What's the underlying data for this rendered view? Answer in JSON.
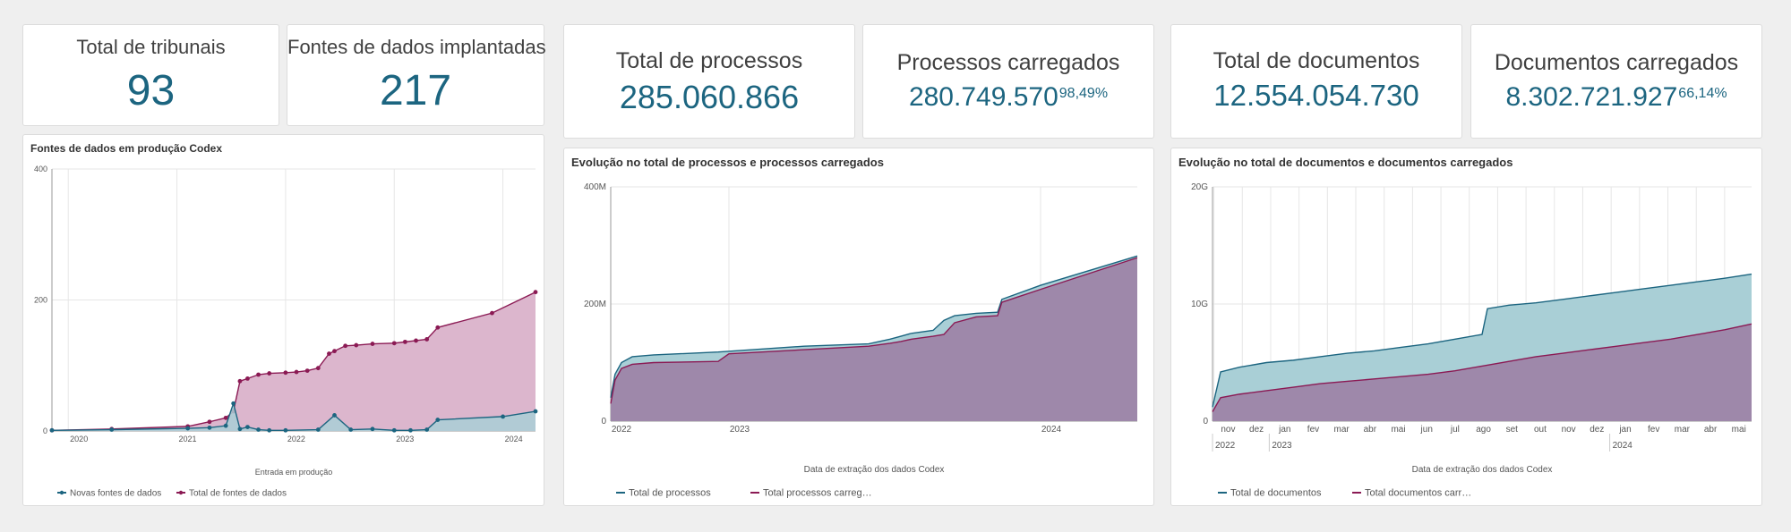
{
  "kpis": {
    "tribunais": {
      "label": "Total de tribunais",
      "value": "93"
    },
    "fontes": {
      "label": "Fontes de dados implantadas",
      "value": "217"
    },
    "processos": {
      "label": "Total de processos",
      "value": "285.060.866"
    },
    "processos_carregados": {
      "label": "Processos carregados",
      "value": "280.749.570",
      "pct": "98,49%"
    },
    "documentos": {
      "label": "Total de documentos",
      "value": "12.554.054.730"
    },
    "documentos_carregados": {
      "label": "Documentos carregados",
      "value": "8.302.721.927",
      "pct": "66,14%"
    }
  },
  "colors": {
    "teal": "#1c6580",
    "magenta": "#8b1a54",
    "teal_fill": "#a9cfd6",
    "pink_fill": "#dcb6cd",
    "purple_fill": "#9e88aa"
  },
  "chart_data": [
    {
      "type": "area",
      "title": "Fontes de dados em produção Codex",
      "xlabel": "Entrada em produção",
      "ylabel": "",
      "ylim": [
        0,
        400
      ],
      "yticks": [
        "0",
        "200",
        "400"
      ],
      "xticks": [
        "2020",
        "2021",
        "2022",
        "2023",
        "2024"
      ],
      "xlim": [
        2019.85,
        2024.3
      ],
      "tick_years": [
        2020,
        2021,
        2022,
        2023,
        2024
      ],
      "legend_position": "bottom-left",
      "series": [
        {
          "name": "Novas fontes de dados",
          "color": "#1c6580",
          "x": [
            2019.85,
            2020.4,
            2021.1,
            2021.3,
            2021.45,
            2021.52,
            2021.58,
            2021.65,
            2021.75,
            2021.85,
            2022.0,
            2022.3,
            2022.45,
            2022.6,
            2022.8,
            2023.0,
            2023.15,
            2023.3,
            2023.4,
            2024.0,
            2024.3
          ],
          "y": [
            1,
            2,
            4,
            5,
            8,
            42,
            3,
            6,
            2,
            1,
            1,
            2,
            24,
            2,
            3,
            1,
            1,
            2,
            17,
            22,
            30
          ]
        },
        {
          "name": "Total de fontes de dados",
          "color": "#8b1a54",
          "x": [
            2019.85,
            2020.4,
            2021.1,
            2021.3,
            2021.45,
            2021.52,
            2021.58,
            2021.65,
            2021.75,
            2021.85,
            2022.0,
            2022.1,
            2022.2,
            2022.3,
            2022.4,
            2022.45,
            2022.55,
            2022.65,
            2022.8,
            2023.0,
            2023.1,
            2023.2,
            2023.3,
            2023.4,
            2023.9,
            2024.3
          ],
          "y": [
            1,
            3,
            7,
            14,
            20,
            30,
            76,
            80,
            86,
            88,
            89,
            90,
            92,
            96,
            118,
            122,
            130,
            131,
            133,
            134,
            136,
            138,
            140,
            158,
            180,
            212
          ]
        }
      ]
    },
    {
      "type": "area",
      "title": "Evolução no total de processos e processos carregados",
      "xlabel": "Data de extração dos dados Codex",
      "ylabel": "",
      "ylim": [
        0,
        400
      ],
      "yticks": [
        "0",
        "200M",
        "400M"
      ],
      "xticks": [
        "2022",
        "2023",
        "2024"
      ],
      "xlim": [
        2022.0,
        2024.45
      ],
      "tick_years": [
        2022.0,
        2022.55,
        2024.0
      ],
      "legend_position": "bottom-left",
      "series": [
        {
          "name": "Total de processos",
          "color": "#1c6580",
          "x": [
            2022.0,
            2022.02,
            2022.05,
            2022.1,
            2022.2,
            2022.5,
            2022.9,
            2023.2,
            2023.3,
            2023.35,
            2023.4,
            2023.5,
            2023.55,
            2023.6,
            2023.7,
            2023.8,
            2023.82,
            2024.0,
            2024.45
          ],
          "y": [
            40,
            80,
            100,
            110,
            113,
            118,
            128,
            132,
            140,
            145,
            150,
            155,
            172,
            180,
            184,
            186,
            208,
            232,
            282
          ]
        },
        {
          "name": "Total processos carregados",
          "color": "#8b1a54",
          "x": [
            2022.0,
            2022.02,
            2022.05,
            2022.1,
            2022.2,
            2022.5,
            2022.55,
            2022.9,
            2023.2,
            2023.3,
            2023.35,
            2023.4,
            2023.5,
            2023.55,
            2023.6,
            2023.7,
            2023.8,
            2023.82,
            2024.0,
            2024.45
          ],
          "y": [
            30,
            70,
            90,
            97,
            100,
            102,
            115,
            122,
            128,
            133,
            136,
            140,
            145,
            148,
            168,
            178,
            180,
            203,
            225,
            279
          ]
        }
      ]
    },
    {
      "type": "area",
      "title": "Evolução no total de documentos e documentos carregados",
      "xlabel": "Data de extração dos dados Codex",
      "ylabel": "",
      "ylim": [
        0,
        20
      ],
      "yticks": [
        "0",
        "10G",
        "20G"
      ],
      "xticks": [
        "nov",
        "dez",
        "jan",
        "fev",
        "mar",
        "abr",
        "mai",
        "jun",
        "jul",
        "ago",
        "set",
        "out",
        "nov",
        "dez",
        "jan",
        "fev",
        "mar",
        "abr",
        "mai"
      ],
      "year_labels": [
        "2022",
        "2023",
        "2024"
      ],
      "year_label_index": [
        0,
        2,
        14
      ],
      "xlim": [
        0,
        20
      ],
      "legend_position": "bottom-left",
      "series": [
        {
          "name": "Total de documentos",
          "color": "#1c6580",
          "x": [
            0,
            0.3,
            1,
            2,
            3,
            4,
            5,
            6,
            7,
            8,
            9,
            10,
            10.2,
            11,
            12,
            13,
            14,
            15,
            16,
            17,
            18,
            19,
            20
          ],
          "y": [
            1.2,
            4.2,
            4.6,
            5.0,
            5.2,
            5.5,
            5.8,
            6.0,
            6.3,
            6.6,
            7.0,
            7.4,
            9.6,
            9.9,
            10.1,
            10.4,
            10.7,
            11.0,
            11.3,
            11.6,
            11.9,
            12.2,
            12.55
          ]
        },
        {
          "name": "Total documentos carregados",
          "color": "#8b1a54",
          "x": [
            0,
            0.3,
            1,
            2,
            3,
            4,
            5,
            6,
            7,
            8,
            9,
            10,
            11,
            12,
            13,
            14,
            15,
            16,
            17,
            18,
            19,
            20
          ],
          "y": [
            0.8,
            2.0,
            2.3,
            2.6,
            2.9,
            3.2,
            3.4,
            3.6,
            3.8,
            4.0,
            4.3,
            4.7,
            5.1,
            5.5,
            5.8,
            6.1,
            6.4,
            6.7,
            7.0,
            7.4,
            7.8,
            8.3
          ]
        }
      ]
    }
  ]
}
